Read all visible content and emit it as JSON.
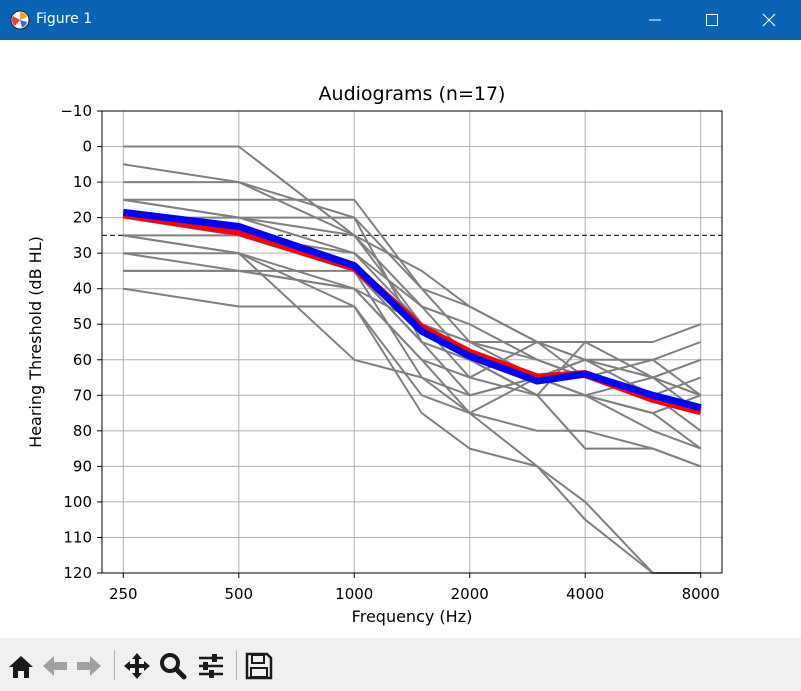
{
  "window": {
    "title": "Figure 1"
  },
  "toolbar": {
    "tools": [
      "home-icon",
      "back-arrow-icon",
      "forward-arrow-icon",
      "pan-icon",
      "zoom-icon",
      "configure-subplots-icon",
      "save-icon"
    ]
  },
  "colors": {
    "titlebar": "#0a63b5",
    "grid": "#b0b0b0",
    "individual": "#808080",
    "mean_red": "#ff0000",
    "mean_blue": "#0000ff",
    "reference": "#333333"
  },
  "chart_data": {
    "type": "line",
    "title": "Audiograms (n=17)",
    "xlabel": "Frequency (Hz)",
    "ylabel": "Hearing Threshold (dB HL)",
    "x_scale": "log",
    "x": [
      250,
      500,
      1000,
      1500,
      2000,
      3000,
      4000,
      6000,
      8000
    ],
    "xticks": [
      250,
      500,
      1000,
      2000,
      4000,
      8000
    ],
    "xtick_labels": [
      "250",
      "500",
      "1000",
      "2000",
      "4000",
      "8000"
    ],
    "ylim": [
      120,
      -10
    ],
    "yticks": [
      -10,
      0,
      10,
      20,
      30,
      40,
      50,
      60,
      70,
      80,
      90,
      100,
      110,
      120
    ],
    "ytick_labels": [
      "−10",
      "0",
      "10",
      "20",
      "30",
      "40",
      "50",
      "60",
      "70",
      "80",
      "90",
      "100",
      "110",
      "120"
    ],
    "grid": true,
    "reference_line": {
      "y": 25,
      "style": "dashed"
    },
    "series": [
      {
        "color": "#808080",
        "values": [
          0,
          0,
          25,
          35,
          45,
          55,
          60,
          65,
          60
        ]
      },
      {
        "color": "#808080",
        "values": [
          5,
          10,
          20,
          40,
          45,
          55,
          55,
          55,
          50
        ]
      },
      {
        "color": "#808080",
        "values": [
          10,
          10,
          25,
          45,
          50,
          60,
          65,
          70,
          65
        ]
      },
      {
        "color": "#808080",
        "values": [
          15,
          15,
          15,
          40,
          55,
          60,
          65,
          60,
          55
        ]
      },
      {
        "color": "#808080",
        "values": [
          15,
          20,
          25,
          50,
          55,
          65,
          60,
          65,
          70
        ]
      },
      {
        "color": "#808080",
        "values": [
          20,
          20,
          20,
          55,
          60,
          65,
          70,
          75,
          70
        ]
      },
      {
        "color": "#808080",
        "values": [
          20,
          25,
          30,
          45,
          60,
          70,
          55,
          65,
          75
        ]
      },
      {
        "color": "#808080",
        "values": [
          25,
          25,
          35,
          55,
          70,
          65,
          60,
          70,
          80
        ]
      },
      {
        "color": "#808080",
        "values": [
          25,
          30,
          40,
          60,
          65,
          70,
          70,
          75,
          85
        ]
      },
      {
        "color": "#808080",
        "values": [
          25,
          30,
          45,
          75,
          85,
          90,
          100,
          120,
          120
        ]
      },
      {
        "color": "#808080",
        "values": [
          30,
          30,
          60,
          65,
          75,
          90,
          105,
          120,
          120
        ]
      },
      {
        "color": "#808080",
        "values": [
          30,
          35,
          40,
          60,
          75,
          80,
          80,
          85,
          90
        ]
      },
      {
        "color": "#808080",
        "values": [
          20,
          25,
          35,
          65,
          70,
          65,
          70,
          65,
          70
        ]
      },
      {
        "color": "#808080",
        "values": [
          35,
          35,
          35,
          55,
          60,
          70,
          85,
          85,
          90
        ]
      },
      {
        "color": "#808080",
        "values": [
          15,
          20,
          30,
          50,
          55,
          55,
          60,
          60,
          70
        ]
      },
      {
        "color": "#808080",
        "values": [
          35,
          35,
          40,
          50,
          65,
          55,
          65,
          70,
          75
        ]
      },
      {
        "color": "#808080",
        "values": [
          40,
          45,
          45,
          70,
          75,
          65,
          70,
          80,
          85
        ]
      },
      {
        "color": "#ff0000",
        "values": [
          19,
          24,
          34,
          51,
          58,
          65,
          64,
          71,
          74.5
        ]
      },
      {
        "color": "#0000ff",
        "values": [
          18.5,
          22.5,
          33.5,
          52,
          59,
          66,
          64,
          70,
          73.5
        ]
      }
    ]
  }
}
